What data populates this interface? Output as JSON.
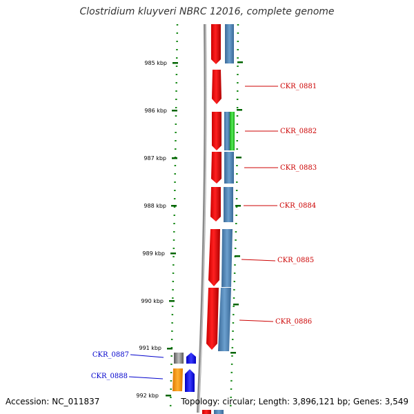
{
  "title": "Clostridium kluyveri NBRC 12016, complete genome",
  "footer": {
    "accession": "Accession: NC_011837",
    "topology": "Topology: circular; Length: 3,896,121 bp; Genes: 3,549"
  },
  "ticks": [
    {
      "label": "985 kbp"
    },
    {
      "label": "986 kbp"
    },
    {
      "label": "987 kbp"
    },
    {
      "label": "988 kbp"
    },
    {
      "label": "989 kbp"
    },
    {
      "label": "990 kbp"
    },
    {
      "label": "991 kbp"
    },
    {
      "label": "992 kbp"
    }
  ],
  "genes": [
    {
      "label": "CKR_0881",
      "color": "#cc0000"
    },
    {
      "label": "CKR_0882",
      "color": "#cc0000"
    },
    {
      "label": "CKR_0883",
      "color": "#cc0000"
    },
    {
      "label": "CKR_0884",
      "color": "#cc0000"
    },
    {
      "label": "CKR_0885",
      "color": "#cc0000"
    },
    {
      "label": "CKR_0886",
      "color": "#cc0000"
    },
    {
      "label": "CKR_0887",
      "color": "#0000cc"
    },
    {
      "label": "CKR_0888",
      "color": "#0000cc"
    }
  ],
  "colors": {
    "cds_forward": "#ff0000",
    "gene_track": "#4a7fb0",
    "rna_like": "#22cc22",
    "backbone": "#808080",
    "tick_mark": "#006400",
    "orange_feature": "#ff9900",
    "blue_feature": "#0000ee",
    "gray_feature": "#666666"
  }
}
